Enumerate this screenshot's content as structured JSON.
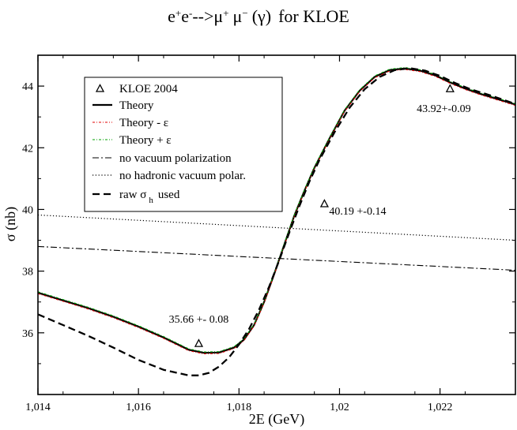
{
  "chart_data": {
    "type": "line",
    "title_parts": {
      "e_plus": "e",
      "e_minus": "e",
      "arrow": "-->",
      "mu_plus": "μ",
      "mu_minus": "μ",
      "gamma": "(γ)",
      "suffix": "for KLOE",
      "plus": "+",
      "minus": "-",
      "minus_sign": "−"
    },
    "xlabel": "2E  (GeV)",
    "ylabel": "σ (nb)",
    "xlim": [
      1.014,
      1.0235
    ],
    "ylim": [
      34.0,
      45.0
    ],
    "xticks": [
      {
        "value": 1.014,
        "label": "1,014"
      },
      {
        "value": 1.016,
        "label": "1,016"
      },
      {
        "value": 1.018,
        "label": "1,018"
      },
      {
        "value": 1.02,
        "label": "1,02"
      },
      {
        "value": 1.022,
        "label": "1,022"
      }
    ],
    "yticks": [
      {
        "value": 36,
        "label": "36"
      },
      {
        "value": 38,
        "label": "38"
      },
      {
        "value": 40,
        "label": "40"
      },
      {
        "value": 42,
        "label": "42"
      },
      {
        "value": 44,
        "label": "44"
      }
    ],
    "series": [
      {
        "name": "Theory",
        "color": "#000000",
        "dash": "",
        "x": [
          1.014,
          1.0145,
          1.015,
          1.0155,
          1.016,
          1.0165,
          1.017,
          1.0173,
          1.0176,
          1.0179,
          1.0181,
          1.0183,
          1.0185,
          1.0187,
          1.0189,
          1.0191,
          1.0193,
          1.0195,
          1.0198,
          1.0201,
          1.0204,
          1.0207,
          1.021,
          1.0213,
          1.0216,
          1.0219,
          1.0222,
          1.0225,
          1.0228,
          1.0231,
          1.0235
        ],
        "y": [
          37.3,
          37.05,
          36.8,
          36.52,
          36.2,
          35.85,
          35.45,
          35.35,
          35.36,
          35.52,
          35.78,
          36.25,
          37.0,
          37.9,
          38.85,
          39.8,
          40.6,
          41.35,
          42.3,
          43.2,
          43.85,
          44.3,
          44.52,
          44.57,
          44.5,
          44.35,
          44.12,
          43.92,
          43.75,
          43.6,
          43.4
        ]
      },
      {
        "name": "Theory  - ε",
        "color": "#e00000",
        "dash": "3,2,1,2",
        "x": [
          1.014,
          1.0145,
          1.015,
          1.0155,
          1.016,
          1.0165,
          1.017,
          1.0173,
          1.0176,
          1.0179,
          1.0181,
          1.0183,
          1.0185,
          1.0187,
          1.0189,
          1.0191,
          1.0193,
          1.0195,
          1.0198,
          1.0201,
          1.0204,
          1.0207,
          1.021,
          1.0213,
          1.0216,
          1.0219,
          1.0222,
          1.0225,
          1.0228,
          1.0231,
          1.0235
        ],
        "y": [
          37.27,
          37.02,
          36.77,
          36.49,
          36.17,
          35.82,
          35.42,
          35.32,
          35.33,
          35.49,
          35.75,
          36.22,
          36.97,
          37.87,
          38.82,
          39.77,
          40.57,
          41.32,
          42.27,
          43.17,
          43.82,
          44.27,
          44.49,
          44.54,
          44.47,
          44.32,
          44.09,
          43.89,
          43.72,
          43.57,
          43.37
        ]
      },
      {
        "name": "Theory + ε",
        "color": "#00a000",
        "dash": "3,2,1,2",
        "x": [
          1.014,
          1.0145,
          1.015,
          1.0155,
          1.016,
          1.0165,
          1.017,
          1.0173,
          1.0176,
          1.0179,
          1.0181,
          1.0183,
          1.0185,
          1.0187,
          1.0189,
          1.0191,
          1.0193,
          1.0195,
          1.0198,
          1.0201,
          1.0204,
          1.0207,
          1.021,
          1.0213,
          1.0216,
          1.0219,
          1.0222,
          1.0225,
          1.0228,
          1.0231,
          1.0235
        ],
        "y": [
          37.33,
          37.08,
          36.83,
          36.55,
          36.23,
          35.88,
          35.48,
          35.38,
          35.39,
          35.55,
          35.81,
          36.28,
          37.03,
          37.93,
          38.88,
          39.83,
          40.63,
          41.38,
          42.33,
          43.23,
          43.88,
          44.33,
          44.55,
          44.6,
          44.53,
          44.38,
          44.15,
          43.95,
          43.78,
          43.63,
          43.43
        ]
      },
      {
        "name": "no vacuum polarization",
        "color": "#000000",
        "dash": "8,3,2,3",
        "x": [
          1.014,
          1.0235
        ],
        "y": [
          38.8,
          38.03
        ]
      },
      {
        "name": "no hadronic vacuum polar.",
        "color": "#000000",
        "dash": "1.2,2.6",
        "x": [
          1.014,
          1.0235
        ],
        "y": [
          39.82,
          39.0
        ]
      },
      {
        "name": "raw  σ  used",
        "color": "#000000",
        "dash": "9,5",
        "x": [
          1.014,
          1.0145,
          1.015,
          1.0155,
          1.016,
          1.0165,
          1.017,
          1.0172,
          1.0174,
          1.0176,
          1.0178,
          1.018,
          1.0182,
          1.0184,
          1.0186,
          1.0188,
          1.019,
          1.0192,
          1.0194,
          1.0196,
          1.0199,
          1.0202,
          1.0205,
          1.0208,
          1.0211,
          1.0214,
          1.0217,
          1.022,
          1.0223,
          1.0226,
          1.023,
          1.0235
        ],
        "y": [
          36.6,
          36.25,
          35.9,
          35.52,
          35.12,
          34.8,
          34.62,
          34.62,
          34.7,
          34.9,
          35.2,
          35.62,
          36.12,
          36.75,
          37.5,
          38.35,
          39.25,
          40.1,
          40.9,
          41.6,
          42.5,
          43.3,
          43.9,
          44.3,
          44.52,
          44.58,
          44.5,
          44.33,
          44.1,
          43.9,
          43.7,
          43.42
        ]
      }
    ],
    "data_points": {
      "name": "KLOE 2004",
      "points": [
        {
          "x": 1.0172,
          "y": 35.66,
          "label": "35.66 +- 0.08"
        },
        {
          "x": 1.0197,
          "y": 40.19,
          "label": "40.19 +-0.14"
        },
        {
          "x": 1.0222,
          "y": 43.92,
          "label": "43.92+-0.09"
        }
      ]
    },
    "legend": {
      "position": "upper-left",
      "raw_label_main": "raw  σ",
      "raw_label_sub": "h",
      "raw_label_tail": "used"
    }
  }
}
